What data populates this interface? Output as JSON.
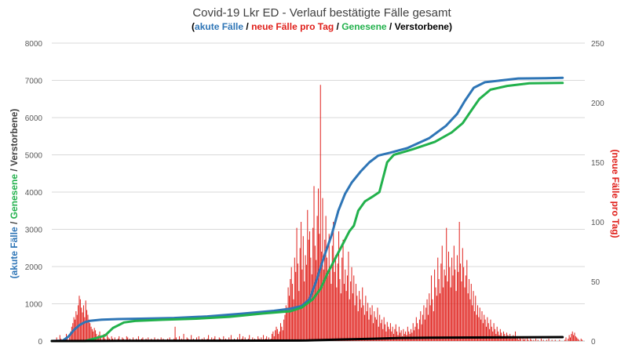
{
  "chart_data": {
    "type": "line",
    "title": "Covid-19 Lkr ED - Verlauf bestätigte Fälle gesamt",
    "subtitle_parts": [
      {
        "text": "(",
        "color": "#000000"
      },
      {
        "text": "akute Fälle",
        "color": "#2e75b6"
      },
      {
        "text": " / ",
        "color": "#000000"
      },
      {
        "text": "neue Fälle pro Tag",
        "color": "#e0201b"
      },
      {
        "text": " / ",
        "color": "#000000"
      },
      {
        "text": "Genesene",
        "color": "#22b14c"
      },
      {
        "text": " / ",
        "color": "#000000"
      },
      {
        "text": "Verstorbene",
        "color": "#000000"
      },
      {
        "text": ")",
        "color": "#000000"
      }
    ],
    "ylabel_left_parts": [
      {
        "text": "(akute Fälle",
        "color": "#2e75b6"
      },
      {
        "text": " / ",
        "color": "#404040"
      },
      {
        "text": "Genesene",
        "color": "#22b14c"
      },
      {
        "text": " / Verstorbene)",
        "color": "#404040"
      }
    ],
    "ylabel_right": "(neue Fälle pro Tag)",
    "ylim_left": [
      0,
      8000
    ],
    "ylim_right": [
      0,
      250
    ],
    "yticks_left": [
      "0",
      "1000",
      "2000",
      "3000",
      "4000",
      "5000",
      "6000",
      "7000",
      "8000"
    ],
    "yticks_right": [
      "0",
      "50",
      "100",
      "150",
      "200",
      "250"
    ],
    "grid": true,
    "x_days": 480,
    "colors": {
      "akute": "#2e75b6",
      "neue": "#e0201b",
      "genesene": "#22b14c",
      "verstorbene": "#000000"
    },
    "series": [
      {
        "name": "akute Fälle",
        "axis": "left",
        "color": "#2e75b6",
        "points": [
          [
            0,
            0
          ],
          [
            10,
            10
          ],
          [
            15,
            120
          ],
          [
            20,
            300
          ],
          [
            25,
            430
          ],
          [
            30,
            510
          ],
          [
            35,
            545
          ],
          [
            45,
            575
          ],
          [
            60,
            590
          ],
          [
            80,
            600
          ],
          [
            110,
            620
          ],
          [
            140,
            660
          ],
          [
            170,
            730
          ],
          [
            200,
            810
          ],
          [
            215,
            870
          ],
          [
            225,
            940
          ],
          [
            232,
            1120
          ],
          [
            238,
            1600
          ],
          [
            245,
            2250
          ],
          [
            252,
            2850
          ],
          [
            258,
            3500
          ],
          [
            264,
            3950
          ],
          [
            270,
            4250
          ],
          [
            278,
            4550
          ],
          [
            286,
            4800
          ],
          [
            294,
            4980
          ],
          [
            305,
            5060
          ],
          [
            320,
            5180
          ],
          [
            340,
            5450
          ],
          [
            355,
            5780
          ],
          [
            365,
            6100
          ],
          [
            372,
            6450
          ],
          [
            380,
            6800
          ],
          [
            390,
            6950
          ],
          [
            405,
            7000
          ],
          [
            420,
            7050
          ],
          [
            445,
            7060
          ],
          [
            460,
            7070
          ]
        ]
      },
      {
        "name": "Genesene",
        "axis": "left",
        "color": "#22b14c",
        "points": [
          [
            0,
            0
          ],
          [
            30,
            0
          ],
          [
            40,
            80
          ],
          [
            48,
            150
          ],
          [
            55,
            350
          ],
          [
            65,
            500
          ],
          [
            75,
            540
          ],
          [
            100,
            570
          ],
          [
            130,
            600
          ],
          [
            160,
            650
          ],
          [
            190,
            740
          ],
          [
            215,
            800
          ],
          [
            225,
            900
          ],
          [
            235,
            1120
          ],
          [
            242,
            1400
          ],
          [
            248,
            1800
          ],
          [
            255,
            2200
          ],
          [
            262,
            2600
          ],
          [
            268,
            2950
          ],
          [
            272,
            3100
          ],
          [
            276,
            3500
          ],
          [
            282,
            3750
          ],
          [
            290,
            3900
          ],
          [
            295,
            4000
          ],
          [
            302,
            4800
          ],
          [
            308,
            5000
          ],
          [
            325,
            5150
          ],
          [
            345,
            5350
          ],
          [
            360,
            5600
          ],
          [
            370,
            5850
          ],
          [
            378,
            6200
          ],
          [
            385,
            6500
          ],
          [
            395,
            6750
          ],
          [
            410,
            6850
          ],
          [
            430,
            6920
          ],
          [
            460,
            6930
          ]
        ]
      },
      {
        "name": "Verstorbene",
        "axis": "left",
        "color": "#000000",
        "points": [
          [
            0,
            0
          ],
          [
            60,
            5
          ],
          [
            150,
            8
          ],
          [
            230,
            15
          ],
          [
            260,
            40
          ],
          [
            290,
            60
          ],
          [
            310,
            80
          ],
          [
            340,
            90
          ],
          [
            380,
            95
          ],
          [
            420,
            100
          ],
          [
            460,
            105
          ]
        ]
      },
      {
        "name": "neue Fälle pro Tag",
        "axis": "right",
        "color": "#e0201b",
        "kind": "bars",
        "values": [
          0,
          0,
          0,
          0,
          3,
          0,
          0,
          5,
          2,
          0,
          0,
          0,
          0,
          6,
          4,
          0,
          3,
          8,
          12,
          15,
          20,
          18,
          25,
          22,
          30,
          38,
          35,
          28,
          24,
          30,
          20,
          34,
          26,
          22,
          18,
          15,
          12,
          10,
          8,
          11,
          9,
          6,
          4,
          5,
          8,
          3,
          0,
          4,
          6,
          2,
          0,
          5,
          3,
          2,
          0,
          4,
          2,
          0,
          3,
          1,
          0,
          2,
          4,
          1,
          0,
          3,
          2,
          0,
          1,
          4,
          3,
          0,
          2,
          1,
          0,
          3,
          0,
          1,
          2,
          0,
          4,
          1,
          0,
          2,
          3,
          0,
          1,
          2,
          0,
          3,
          0,
          0,
          2,
          1,
          0,
          3,
          1,
          0,
          2,
          0,
          1,
          3,
          0,
          2,
          1,
          0,
          0,
          2,
          1,
          3,
          0,
          1,
          0,
          2,
          12,
          3,
          0,
          1,
          4,
          0,
          2,
          0,
          6,
          1,
          0,
          3,
          2,
          0,
          1,
          5,
          0,
          2,
          0,
          1,
          3,
          0,
          4,
          1,
          0,
          2,
          0,
          3,
          0,
          1,
          2,
          5,
          0,
          1,
          3,
          0,
          2,
          4,
          0,
          1,
          0,
          3,
          2,
          0,
          1,
          4,
          0,
          2,
          1,
          0,
          3,
          0,
          5,
          1,
          0,
          2,
          1,
          0,
          3,
          0,
          6,
          1,
          2,
          4,
          0,
          3,
          1,
          0,
          2,
          5,
          0,
          1,
          3,
          0,
          2,
          0,
          1,
          4,
          2,
          0,
          3,
          1,
          5,
          0,
          2,
          4,
          1,
          3,
          0,
          2,
          6,
          8,
          4,
          9,
          12,
          10,
          6,
          8,
          15,
          12,
          9,
          18,
          22,
          30,
          28,
          45,
          38,
          52,
          62,
          48,
          35,
          70,
          58,
          95,
          65,
          42,
          78,
          100,
          60,
          88,
          50,
          72,
          64,
          110,
          85,
          92,
          70,
          56,
          95,
          130,
          80,
          68,
          105,
          128,
          90,
          215,
          75,
          120,
          60,
          85,
          105,
          70,
          55,
          90,
          62,
          48,
          80,
          100,
          58,
          72,
          45,
          65,
          92,
          52,
          40,
          70,
          85,
          48,
          60,
          42,
          55,
          75,
          35,
          50,
          62,
          40,
          55,
          30,
          48,
          38,
          25,
          42,
          35,
          28,
          45,
          30,
          22,
          38,
          25,
          32,
          18,
          28,
          22,
          30,
          15,
          25,
          20,
          18,
          28,
          12,
          22,
          15,
          18,
          10,
          20,
          14,
          8,
          16,
          12,
          10,
          15,
          8,
          12,
          6,
          10,
          14,
          8,
          5,
          12,
          7,
          9,
          4,
          10,
          6,
          8,
          5,
          12,
          8,
          6,
          10,
          7,
          15,
          9,
          12,
          20,
          15,
          10,
          18,
          25,
          14,
          22,
          30,
          18,
          28,
          35,
          22,
          40,
          30,
          55,
          35,
          25,
          60,
          45,
          38,
          70,
          52,
          40,
          65,
          80,
          45,
          60,
          55,
          95,
          50,
          75,
          62,
          45,
          70,
          55,
          80,
          60,
          42,
          72,
          58,
          100,
          65,
          50,
          78,
          62,
          45,
          55,
          68,
          40,
          52,
          35,
          48,
          30,
          42,
          25,
          38,
          22,
          30,
          20,
          28,
          18,
          25,
          15,
          22,
          18,
          12,
          20,
          15,
          10,
          18,
          12,
          8,
          15,
          10,
          6,
          12,
          8,
          5,
          10,
          7,
          4,
          8,
          6,
          3,
          7,
          5,
          2,
          6,
          4,
          2,
          5,
          3,
          8,
          2,
          4,
          1,
          3,
          2,
          0,
          4,
          1,
          2,
          0,
          3,
          1,
          0,
          2,
          1,
          0,
          1,
          0,
          2,
          0,
          1,
          0,
          0,
          2,
          0,
          1,
          0,
          0,
          1,
          0,
          2,
          0,
          0,
          1,
          0,
          0,
          1,
          0,
          0,
          0,
          1,
          0,
          0,
          0,
          0,
          1,
          3,
          0,
          2,
          5,
          3,
          6,
          8,
          5,
          7,
          4,
          3,
          2,
          1,
          0,
          2,
          1,
          0,
          0
        ]
      }
    ]
  }
}
